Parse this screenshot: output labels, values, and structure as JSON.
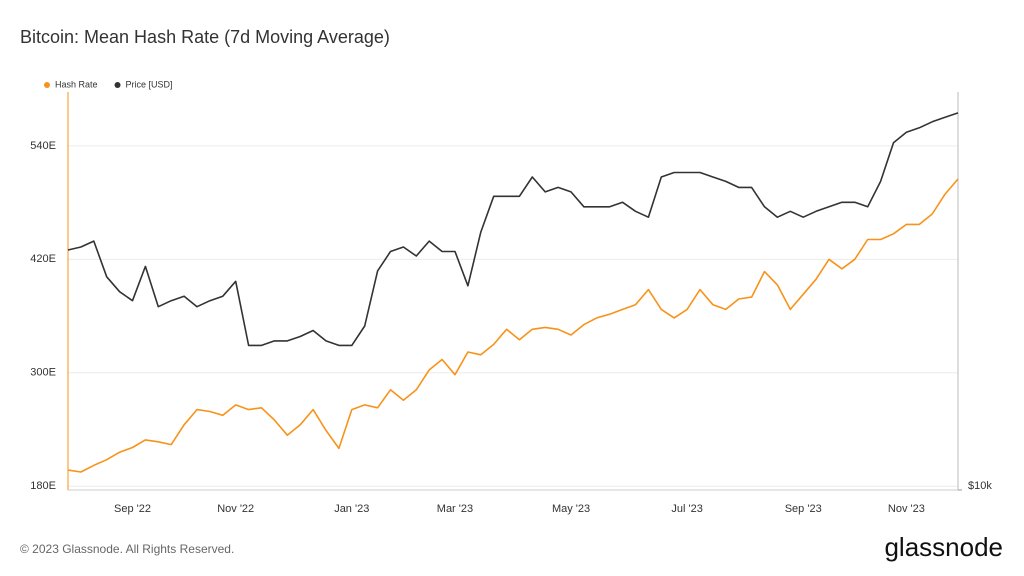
{
  "chart_data": {
    "type": "line",
    "title": "Bitcoin: Mean Hash Rate (7d Moving Average)",
    "footer": "© 2023 Glassnode. All Rights Reserved.",
    "brand": "glassnode",
    "categories": [
      null,
      null,
      null,
      null,
      null,
      "Sep '22",
      null,
      null,
      null,
      null,
      null,
      null,
      null,
      "Nov '22",
      null,
      null,
      null,
      null,
      null,
      null,
      null,
      null,
      "Jan '23",
      null,
      null,
      null,
      null,
      null,
      null,
      null,
      "Mar '23",
      null,
      null,
      null,
      null,
      null,
      null,
      null,
      null,
      "May '23",
      null,
      null,
      null,
      null,
      null,
      null,
      null,
      null,
      "Jul '23",
      null,
      null,
      null,
      null,
      null,
      null,
      null,
      null,
      "Sep '23",
      null,
      null,
      null,
      null,
      null,
      null,
      null,
      "Nov '23",
      null,
      null,
      null,
      null
    ],
    "series": [
      {
        "name": "Hash Rate",
        "color": "#f7931a",
        "axis": "y",
        "values": [
          197,
          195,
          202,
          208,
          216,
          221,
          229,
          227,
          224,
          245,
          261,
          259,
          255,
          266,
          261,
          263,
          250,
          234,
          245,
          261,
          239,
          220,
          261,
          266,
          263,
          282,
          271,
          282,
          303,
          314,
          298,
          322,
          319,
          330,
          346,
          335,
          346,
          348,
          346,
          340,
          351,
          358,
          362,
          367,
          372,
          388,
          367,
          358,
          367,
          388,
          372,
          367,
          378,
          380,
          407,
          393,
          367,
          383,
          399,
          420,
          410,
          420,
          441,
          441,
          447,
          457,
          457,
          468,
          489,
          505
        ]
      },
      {
        "name": "Price [USD]",
        "color": "#333333",
        "axis": "y2",
        "values": [
          26100,
          26300,
          26700,
          24300,
          23300,
          22700,
          25000,
          22300,
          22700,
          23000,
          22300,
          22700,
          23000,
          24000,
          19700,
          19700,
          20000,
          20000,
          20300,
          20700,
          20000,
          19700,
          19700,
          21000,
          24700,
          26000,
          26300,
          25700,
          26700,
          26000,
          26000,
          23700,
          27300,
          29700,
          29700,
          29700,
          31000,
          30000,
          30300,
          30000,
          29000,
          29000,
          29000,
          29300,
          28700,
          28300,
          31000,
          31300,
          31300,
          31300,
          31000,
          30700,
          30300,
          30300,
          29000,
          28300,
          28700,
          28300,
          28700,
          29000,
          29300,
          29300,
          29000,
          30700,
          33300,
          34000,
          34300,
          34700,
          35000,
          35300
        ]
      }
    ],
    "ylim": [
      176,
      597
    ],
    "yticks": [
      {
        "value": 180,
        "label": "180E"
      },
      {
        "value": 300,
        "label": "300E"
      },
      {
        "value": 420,
        "label": "420E"
      },
      {
        "value": 540,
        "label": "540E"
      }
    ],
    "y2lim": [
      10000,
      36700
    ],
    "y2ticks": [
      {
        "value": 10000,
        "label": "$10k"
      }
    ],
    "grid": true,
    "legend": "top-left"
  }
}
